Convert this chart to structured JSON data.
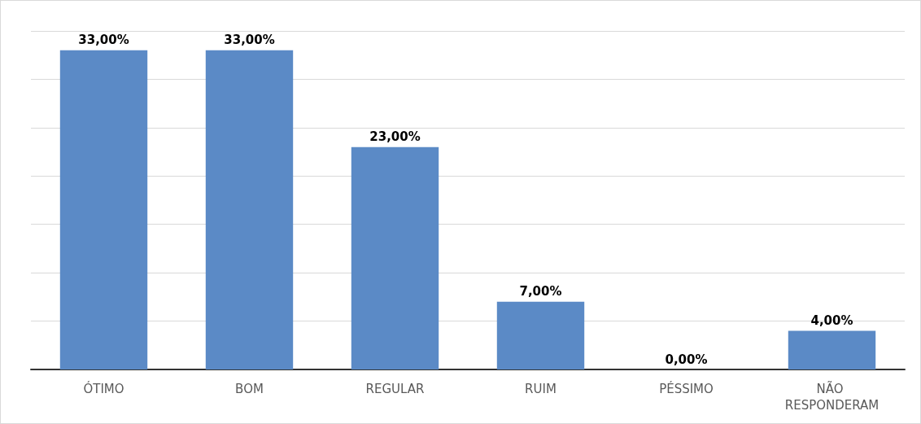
{
  "chart_data": {
    "type": "bar",
    "categories": [
      "ÓTIMO",
      "BOM",
      "REGULAR",
      "RUIM",
      "PÉSSIMO",
      "NÃO RESPONDERAM"
    ],
    "values": [
      33,
      33,
      23,
      7,
      0,
      4
    ],
    "value_labels": [
      "33,00%",
      "33,00%",
      "23,00%",
      "7,00%",
      "0,00%",
      "4,00%"
    ],
    "color": "#5b8ac6",
    "ylim": [
      0,
      35
    ],
    "yticks": [
      {
        "value": 0,
        "label": null
      },
      {
        "value": 5,
        "label": null
      },
      {
        "value": 10,
        "label": null
      },
      {
        "value": 15,
        "label": null
      },
      {
        "value": 20,
        "label": null
      },
      {
        "value": 25,
        "label": null
      },
      {
        "value": 30,
        "label": null
      },
      {
        "value": 35,
        "label": null
      }
    ],
    "grid": "y",
    "tick_labels": "x"
  }
}
